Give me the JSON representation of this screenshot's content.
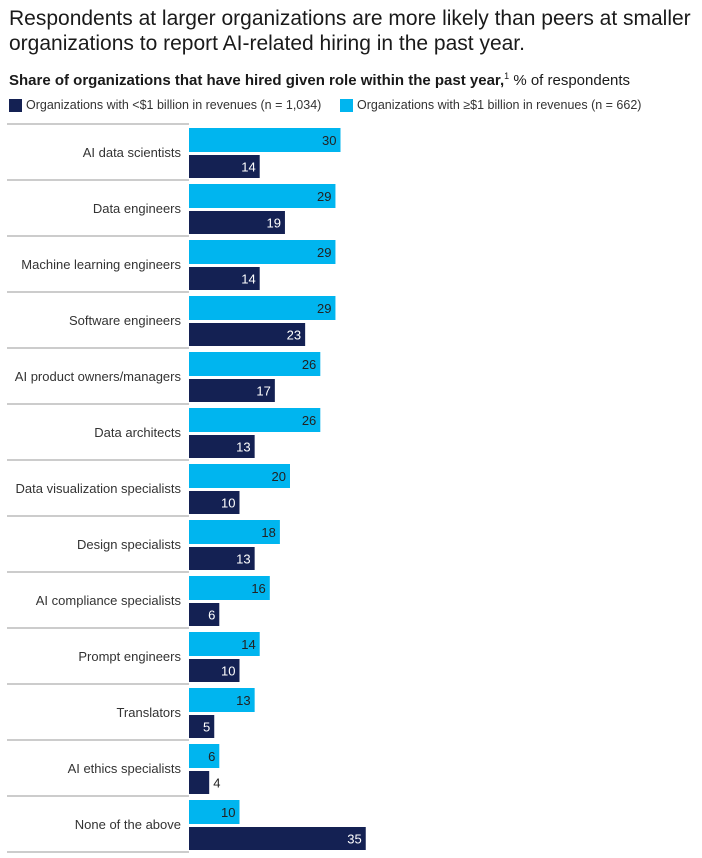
{
  "title": "Respondents at larger organizations are more likely than peers at smaller organizations to report AI-related hiring in the past year.",
  "chart_data": {
    "type": "bar",
    "orientation": "horizontal",
    "subtitle_bold": "Share of organizations that have hired given role within the past year,",
    "footnote_marker": "1",
    "subtitle_unit": "% of respondents",
    "legend_placement": "top-left",
    "grid": false,
    "xlim": [
      0,
      35
    ],
    "categories": [
      "AI data scientists",
      "Data engineers",
      "Machine learning engineers",
      "Software engineers",
      "AI product owners/managers",
      "Data architects",
      "Data visualization specialists",
      "Design specialists",
      "AI compliance specialists",
      "Prompt engineers",
      "Translators",
      "AI ethics specialists",
      "None of the above"
    ],
    "series": [
      {
        "name": "Organizations with ≥$1 billion in revenues (n = 662)",
        "color": "#00b5ef",
        "values": [
          30,
          29,
          29,
          29,
          26,
          26,
          20,
          18,
          16,
          14,
          13,
          6,
          10
        ]
      },
      {
        "name": "Organizations with <$1 billion in revenues (n = 1,034)",
        "color": "#142153",
        "values": [
          14,
          19,
          14,
          23,
          17,
          13,
          10,
          13,
          6,
          10,
          5,
          4,
          35
        ]
      }
    ]
  }
}
